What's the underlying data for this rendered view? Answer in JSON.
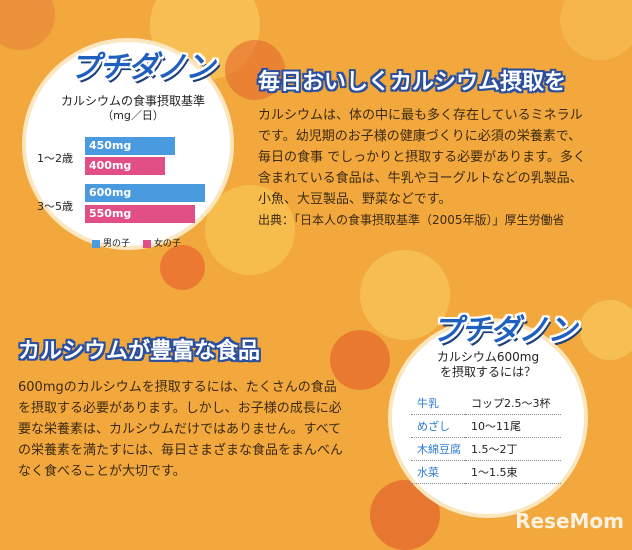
{
  "brand": "ReseMom",
  "logo_text": "プチダノン",
  "chart": {
    "title": "カルシウムの食事摂取基準",
    "unit": "（mg／日）",
    "groups": [
      {
        "age": "1～2歳",
        "boy_label": "450mg",
        "girl_label": "400mg"
      },
      {
        "age": "3～5歳",
        "boy_label": "600mg",
        "girl_label": "550mg"
      }
    ],
    "legend_boy": "男の子",
    "legend_girl": "女の子",
    "colors": {
      "boy": "#4a9ae0",
      "girl": "#e24f86"
    }
  },
  "chart_data": {
    "type": "bar",
    "title": "カルシウムの食事摂取基準",
    "ylabel": "（mg／日）",
    "categories": [
      "1～2歳",
      "3～5歳"
    ],
    "series": [
      {
        "name": "男の子",
        "values": [
          450,
          600
        ]
      },
      {
        "name": "女の子",
        "values": [
          400,
          550
        ]
      }
    ]
  },
  "section1": {
    "heading": "毎日おいしくカルシウム摂取を",
    "lines": [
      "カルシウムは、体の中に最も多く存在しているミネラル",
      "です。幼児期のお子様の健康づくりに必須の栄養素で、",
      "毎日の食事 でしっかりと摂取する必要があります。多く",
      "含まれている食品は、牛乳やヨーグルトなどの乳製品、",
      "小魚、大豆製品、野菜などです。",
      "出典：「日本人の食事摂取基準（2005年版）」厚生労働省"
    ]
  },
  "section2": {
    "heading": "カルシウムが豊富な食品",
    "lines": [
      "600mgのカルシウムを摂取するには、たくさんの食品",
      "を摂取する必要があります。しかし、お子様の成長に必",
      "要な栄養素は、カルシウムだけではありません。すべて",
      "の栄養素を満たすには、毎日さまざまな食品をまんべん",
      "なく食べることが大切です。"
    ]
  },
  "food_box": {
    "title_line1": "カルシウム600mg",
    "title_line2": "を摂取するには？",
    "rows": [
      {
        "food": "牛乳",
        "amount": "コップ2.5～3杯"
      },
      {
        "food": "めざし",
        "amount": "10～11尾"
      },
      {
        "food": "木綿豆腐",
        "amount": "1.5～2丁"
      },
      {
        "food": "水菜",
        "amount": "1～1.5束"
      }
    ]
  }
}
